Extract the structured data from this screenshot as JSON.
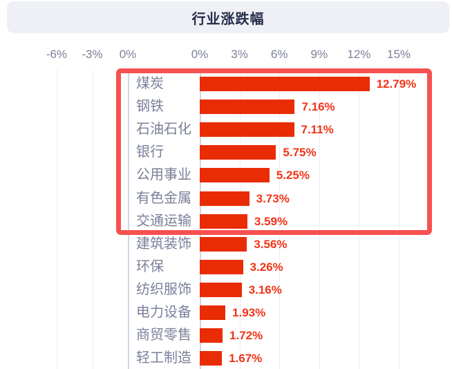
{
  "header": {
    "title": "行业涨跌幅"
  },
  "axis": {
    "left_ticks": [
      "-6%",
      "-3%",
      "0%"
    ],
    "right_ticks": [
      "0%",
      "3%",
      "6%",
      "9%",
      "12%",
      "15%"
    ]
  },
  "chart_data": {
    "type": "bar",
    "orientation": "horizontal",
    "title": "行业涨跌幅",
    "categories": [
      "煤炭",
      "钢铁",
      "石油石化",
      "银行",
      "公用事业",
      "有色金属",
      "交通运输",
      "建筑装饰",
      "环保",
      "纺织服饰",
      "电力设备",
      "商贸零售",
      "轻工制造"
    ],
    "values": [
      12.79,
      7.16,
      7.11,
      5.75,
      5.25,
      3.73,
      3.59,
      3.56,
      3.26,
      3.16,
      1.93,
      1.72,
      1.67
    ],
    "value_labels": [
      "12.79%",
      "7.16%",
      "7.11%",
      "5.75%",
      "5.25%",
      "3.73%",
      "3.59%",
      "3.56%",
      "3.26%",
      "3.16%",
      "1.93%",
      "1.72%",
      "1.67%"
    ],
    "xlabel": "",
    "ylabel": "",
    "xlim": [
      0,
      15
    ],
    "x_tick_values_pct": [
      0,
      3,
      6,
      9,
      12,
      15
    ],
    "cropped_left_axis_tick_values_pct": [
      -6,
      -3,
      0
    ],
    "grid": true,
    "legend": "none",
    "highlight_annotation": {
      "shape": "red-box",
      "row_count": 7,
      "rows": [
        "煤炭",
        "钢铁",
        "石油石化",
        "银行",
        "公用事业",
        "有色金属",
        "交通运输"
      ]
    }
  },
  "colors": {
    "header_bg": "#eef0f6",
    "title_text": "#262c49",
    "axis_text": "#7b7f99",
    "gridline": "#ecedf4",
    "axis_line": "#d2d5e4",
    "bar": "#e92c03",
    "value_text": "#f13317",
    "highlight_box": "#f65150"
  }
}
